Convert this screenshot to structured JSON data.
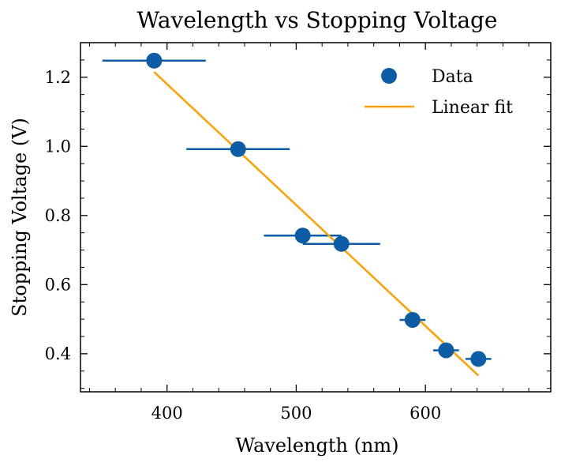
{
  "chart_data": {
    "type": "scatter",
    "title": "Wavelength vs Stopping Voltage",
    "xlabel": "Wavelength (nm)",
    "ylabel": "Stopping Voltage (V)",
    "xlim": [
      333,
      697
    ],
    "ylim": [
      0.29,
      1.3
    ],
    "xticks": [
      400,
      500,
      600
    ],
    "xtick_labels": [
      "400",
      "500",
      "600"
    ],
    "yticks": [
      0.4,
      0.6,
      0.8,
      1.0,
      1.2
    ],
    "ytick_labels": [
      "0.4",
      "0.6",
      "0.8",
      "1.0",
      "1.2"
    ],
    "grid": false,
    "legend_position": "top-right",
    "series": [
      {
        "name": "Data",
        "type": "scatter",
        "color": "#0C5DA5",
        "points": [
          {
            "x": 390,
            "y": 1.248,
            "xerr": 40
          },
          {
            "x": 455,
            "y": 0.992,
            "xerr": 40
          },
          {
            "x": 505,
            "y": 0.742,
            "xerr": 30
          },
          {
            "x": 535,
            "y": 0.718,
            "xerr": 30
          },
          {
            "x": 590,
            "y": 0.498,
            "xerr": 10
          },
          {
            "x": 616,
            "y": 0.41,
            "xerr": 10
          },
          {
            "x": 641,
            "y": 0.385,
            "xerr": 10
          }
        ]
      },
      {
        "name": "Linear fit",
        "type": "line",
        "color": "#FF9F00",
        "x": [
          390,
          641
        ],
        "y": [
          1.215,
          0.337
        ]
      }
    ]
  }
}
